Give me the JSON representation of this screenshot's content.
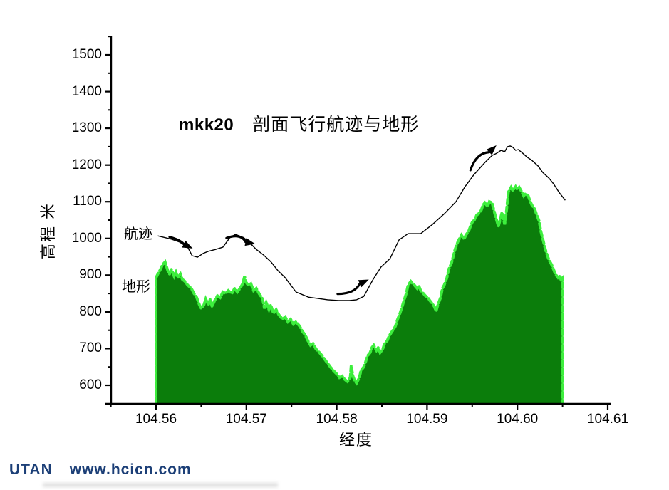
{
  "page": {
    "background": "#ffffff"
  },
  "watermark": {
    "brand": "UTAN",
    "url": "www.hcicn.com",
    "color": "#1c3f77"
  },
  "chart_data": {
    "type": "area",
    "title": {
      "prefix": "mkk20",
      "main": "剖面飞行航迹与地形"
    },
    "xlabel": "经度",
    "ylabel": "高程 米",
    "grid": false,
    "legend": "inline-labels",
    "xlim": [
      104.5545,
      104.611
    ],
    "ylim": [
      550,
      1550
    ],
    "axis_color": "#000000",
    "x_ticks_major": [
      104.56,
      104.57,
      104.58,
      104.59,
      104.6,
      104.61
    ],
    "x_tick_labels": [
      "104.56",
      "104.57",
      "104.58",
      "104.59",
      "104.60",
      "104.61"
    ],
    "x_ticks_minor": [
      104.555,
      104.565,
      104.575,
      104.585,
      104.595,
      104.605
    ],
    "y_ticks_major": [
      600,
      700,
      800,
      900,
      1000,
      1100,
      1200,
      1300,
      1400,
      1500
    ],
    "y_tick_labels": [
      "600",
      "700",
      "800",
      "900",
      "1000",
      "1100",
      "1200",
      "1300",
      "1400",
      "1500"
    ],
    "y_ticks_minor": [
      650,
      750,
      850,
      950,
      1050,
      1150,
      1250,
      1350,
      1450,
      1550
    ],
    "series": [
      {
        "name": "航迹",
        "type": "line",
        "color": "#000000",
        "points": [
          [
            104.5602,
            1007
          ],
          [
            104.5617,
            998
          ],
          [
            104.5626,
            990
          ],
          [
            104.5635,
            976
          ],
          [
            104.564,
            953
          ],
          [
            104.5646,
            949
          ],
          [
            104.5652,
            959
          ],
          [
            104.5658,
            965
          ],
          [
            104.5666,
            970
          ],
          [
            104.5674,
            976
          ],
          [
            104.5682,
            1003
          ],
          [
            104.5688,
            1011
          ],
          [
            104.5697,
            1002
          ],
          [
            104.5703,
            990
          ],
          [
            104.5711,
            970
          ],
          [
            104.5719,
            955
          ],
          [
            104.5727,
            937
          ],
          [
            104.5735,
            912
          ],
          [
            104.5743,
            893
          ],
          [
            104.5755,
            854
          ],
          [
            104.5769,
            840
          ],
          [
            104.5778,
            837
          ],
          [
            104.579,
            833
          ],
          [
            104.5802,
            831
          ],
          [
            104.5814,
            831
          ],
          [
            104.5822,
            833
          ],
          [
            104.583,
            842
          ],
          [
            104.584,
            887
          ],
          [
            104.5849,
            922
          ],
          [
            104.5859,
            945
          ],
          [
            104.5869,
            996
          ],
          [
            104.5879,
            1013
          ],
          [
            104.5893,
            1013
          ],
          [
            104.5906,
            1038
          ],
          [
            104.5919,
            1067
          ],
          [
            104.5932,
            1100
          ],
          [
            104.5942,
            1141
          ],
          [
            104.5952,
            1174
          ],
          [
            104.5964,
            1207
          ],
          [
            104.5972,
            1226
          ],
          [
            104.5977,
            1232
          ],
          [
            104.5982,
            1240
          ],
          [
            104.5986,
            1236
          ],
          [
            104.5989,
            1250
          ],
          [
            104.5992,
            1252
          ],
          [
            104.5995,
            1248
          ],
          [
            104.5998,
            1240
          ],
          [
            104.6001,
            1242
          ],
          [
            104.6006,
            1232
          ],
          [
            104.6011,
            1221
          ],
          [
            104.6016,
            1213
          ],
          [
            104.6023,
            1197
          ],
          [
            104.6028,
            1180
          ],
          [
            104.6035,
            1164
          ],
          [
            104.604,
            1149
          ],
          [
            104.6046,
            1126
          ],
          [
            104.6053,
            1104
          ]
        ]
      },
      {
        "name": "地形",
        "type": "area",
        "fill": "#0b7d0b",
        "edge": "#3dee3d",
        "baseline": 550,
        "points": [
          [
            104.56,
            893
          ],
          [
            104.5602,
            903
          ],
          [
            104.5605,
            916
          ],
          [
            104.5607,
            928
          ],
          [
            104.561,
            936
          ],
          [
            104.5613,
            912
          ],
          [
            104.5615,
            903
          ],
          [
            104.5617,
            916
          ],
          [
            104.562,
            897
          ],
          [
            104.5622,
            908
          ],
          [
            104.5624,
            893
          ],
          [
            104.5627,
            903
          ],
          [
            104.5629,
            889
          ],
          [
            104.5632,
            883
          ],
          [
            104.5635,
            873
          ],
          [
            104.5639,
            864
          ],
          [
            104.5642,
            850
          ],
          [
            104.5645,
            839
          ],
          [
            104.5648,
            819
          ],
          [
            104.565,
            809
          ],
          [
            104.5653,
            819
          ],
          [
            104.5655,
            835
          ],
          [
            104.5658,
            819
          ],
          [
            104.566,
            835
          ],
          [
            104.5662,
            815
          ],
          [
            104.5665,
            831
          ],
          [
            104.5668,
            844
          ],
          [
            104.5671,
            839
          ],
          [
            104.5674,
            854
          ],
          [
            104.5677,
            850
          ],
          [
            104.568,
            858
          ],
          [
            104.5684,
            850
          ],
          [
            104.5687,
            864
          ],
          [
            104.569,
            854
          ],
          [
            104.5693,
            864
          ],
          [
            104.5696,
            877
          ],
          [
            104.5698,
            897
          ],
          [
            104.5699,
            883
          ],
          [
            104.5702,
            873
          ],
          [
            104.5705,
            877
          ],
          [
            104.5708,
            858
          ],
          [
            104.5711,
            864
          ],
          [
            104.5714,
            850
          ],
          [
            104.5718,
            835
          ],
          [
            104.572,
            809
          ],
          [
            104.5722,
            825
          ],
          [
            104.5725,
            806
          ],
          [
            104.5727,
            819
          ],
          [
            104.573,
            796
          ],
          [
            104.5733,
            806
          ],
          [
            104.5736,
            792
          ],
          [
            104.574,
            780
          ],
          [
            104.5743,
            786
          ],
          [
            104.5746,
            773
          ],
          [
            104.5749,
            780
          ],
          [
            104.5752,
            767
          ],
          [
            104.5755,
            773
          ],
          [
            104.5759,
            761
          ],
          [
            104.5762,
            747
          ],
          [
            104.5765,
            738
          ],
          [
            104.5768,
            722
          ],
          [
            104.5771,
            709
          ],
          [
            104.5774,
            714
          ],
          [
            104.5777,
            699
          ],
          [
            104.5781,
            689
          ],
          [
            104.5784,
            680
          ],
          [
            104.5787,
            670
          ],
          [
            104.579,
            660
          ],
          [
            104.5793,
            650
          ],
          [
            104.5796,
            641
          ],
          [
            104.58,
            631
          ],
          [
            104.5803,
            621
          ],
          [
            104.5806,
            625
          ],
          [
            104.5809,
            616
          ],
          [
            104.5812,
            610
          ],
          [
            104.5815,
            621
          ],
          [
            104.5816,
            654
          ],
          [
            104.5818,
            625
          ],
          [
            104.582,
            612
          ],
          [
            104.5822,
            606
          ],
          [
            104.5825,
            621
          ],
          [
            104.5827,
            641
          ],
          [
            104.583,
            650
          ],
          [
            104.5832,
            664
          ],
          [
            104.5834,
            680
          ],
          [
            104.5837,
            689
          ],
          [
            104.5839,
            703
          ],
          [
            104.5841,
            709
          ],
          [
            104.5844,
            695
          ],
          [
            104.5846,
            703
          ],
          [
            104.5848,
            689
          ],
          [
            104.5851,
            699
          ],
          [
            104.5853,
            714
          ],
          [
            104.5856,
            722
          ],
          [
            104.5858,
            734
          ],
          [
            104.586,
            742
          ],
          [
            104.5863,
            753
          ],
          [
            104.5865,
            761
          ],
          [
            104.5867,
            777
          ],
          [
            104.587,
            796
          ],
          [
            104.5872,
            811
          ],
          [
            104.5875,
            835
          ],
          [
            104.5877,
            850
          ],
          [
            104.5879,
            873
          ],
          [
            104.5882,
            883
          ],
          [
            104.5884,
            877
          ],
          [
            104.5886,
            873
          ],
          [
            104.5889,
            864
          ],
          [
            104.5891,
            870
          ],
          [
            104.5893,
            858
          ],
          [
            104.5896,
            850
          ],
          [
            104.5898,
            844
          ],
          [
            104.5901,
            839
          ],
          [
            104.5903,
            831
          ],
          [
            104.5905,
            825
          ],
          [
            104.5908,
            815
          ],
          [
            104.591,
            802
          ],
          [
            104.5912,
            819
          ],
          [
            104.5915,
            839
          ],
          [
            104.5917,
            864
          ],
          [
            104.5919,
            873
          ],
          [
            104.5922,
            893
          ],
          [
            104.5924,
            916
          ],
          [
            104.5927,
            932
          ],
          [
            104.5929,
            951
          ],
          [
            104.5931,
            970
          ],
          [
            104.5934,
            990
          ],
          [
            104.5936,
            1000
          ],
          [
            104.5938,
            1009
          ],
          [
            104.5941,
            998
          ],
          [
            104.5943,
            1009
          ],
          [
            104.5946,
            1019
          ],
          [
            104.5948,
            1033
          ],
          [
            104.595,
            1044
          ],
          [
            104.5953,
            1052
          ],
          [
            104.5955,
            1064
          ],
          [
            104.5957,
            1067
          ],
          [
            104.596,
            1077
          ],
          [
            104.5962,
            1091
          ],
          [
            104.5964,
            1097
          ],
          [
            104.5967,
            1087
          ],
          [
            104.5969,
            1100
          ],
          [
            104.5972,
            1097
          ],
          [
            104.5974,
            1077
          ],
          [
            104.5976,
            1058
          ],
          [
            104.5979,
            1033
          ],
          [
            104.5981,
            1052
          ],
          [
            104.5983,
            1071
          ],
          [
            104.5986,
            1038
          ],
          [
            104.5988,
            1077
          ],
          [
            104.599,
            1126
          ],
          [
            104.5993,
            1139
          ],
          [
            104.5995,
            1130
          ],
          [
            104.5998,
            1141
          ],
          [
            104.6,
            1133
          ],
          [
            104.6002,
            1139
          ],
          [
            104.6005,
            1126
          ],
          [
            104.6007,
            1116
          ],
          [
            104.6009,
            1122
          ],
          [
            104.6012,
            1116
          ],
          [
            104.6014,
            1102
          ],
          [
            104.6016,
            1091
          ],
          [
            104.6019,
            1081
          ],
          [
            104.6021,
            1067
          ],
          [
            104.6024,
            1048
          ],
          [
            104.6026,
            1019
          ],
          [
            104.6028,
            1000
          ],
          [
            104.6031,
            970
          ],
          [
            104.6033,
            955
          ],
          [
            104.6035,
            941
          ],
          [
            104.6038,
            928
          ],
          [
            104.604,
            916
          ],
          [
            104.6042,
            903
          ],
          [
            104.6045,
            893
          ],
          [
            104.6047,
            897
          ],
          [
            104.6048,
            889
          ],
          [
            104.605,
            893
          ]
        ]
      }
    ],
    "arrows": [
      {
        "tail": [
          104.5615,
          1004
        ],
        "head": [
          104.5637,
          977
        ],
        "bend": -3
      },
      {
        "tail": [
          104.5678,
          1001
        ],
        "head": [
          104.5706,
          987
        ],
        "bend": -11
      },
      {
        "tail": [
          104.5801,
          849
        ],
        "head": [
          104.5832,
          884
        ],
        "bend": 10
      },
      {
        "tail": [
          104.5948,
          1186
        ],
        "head": [
          104.5974,
          1247
        ],
        "bend": -12
      }
    ]
  }
}
